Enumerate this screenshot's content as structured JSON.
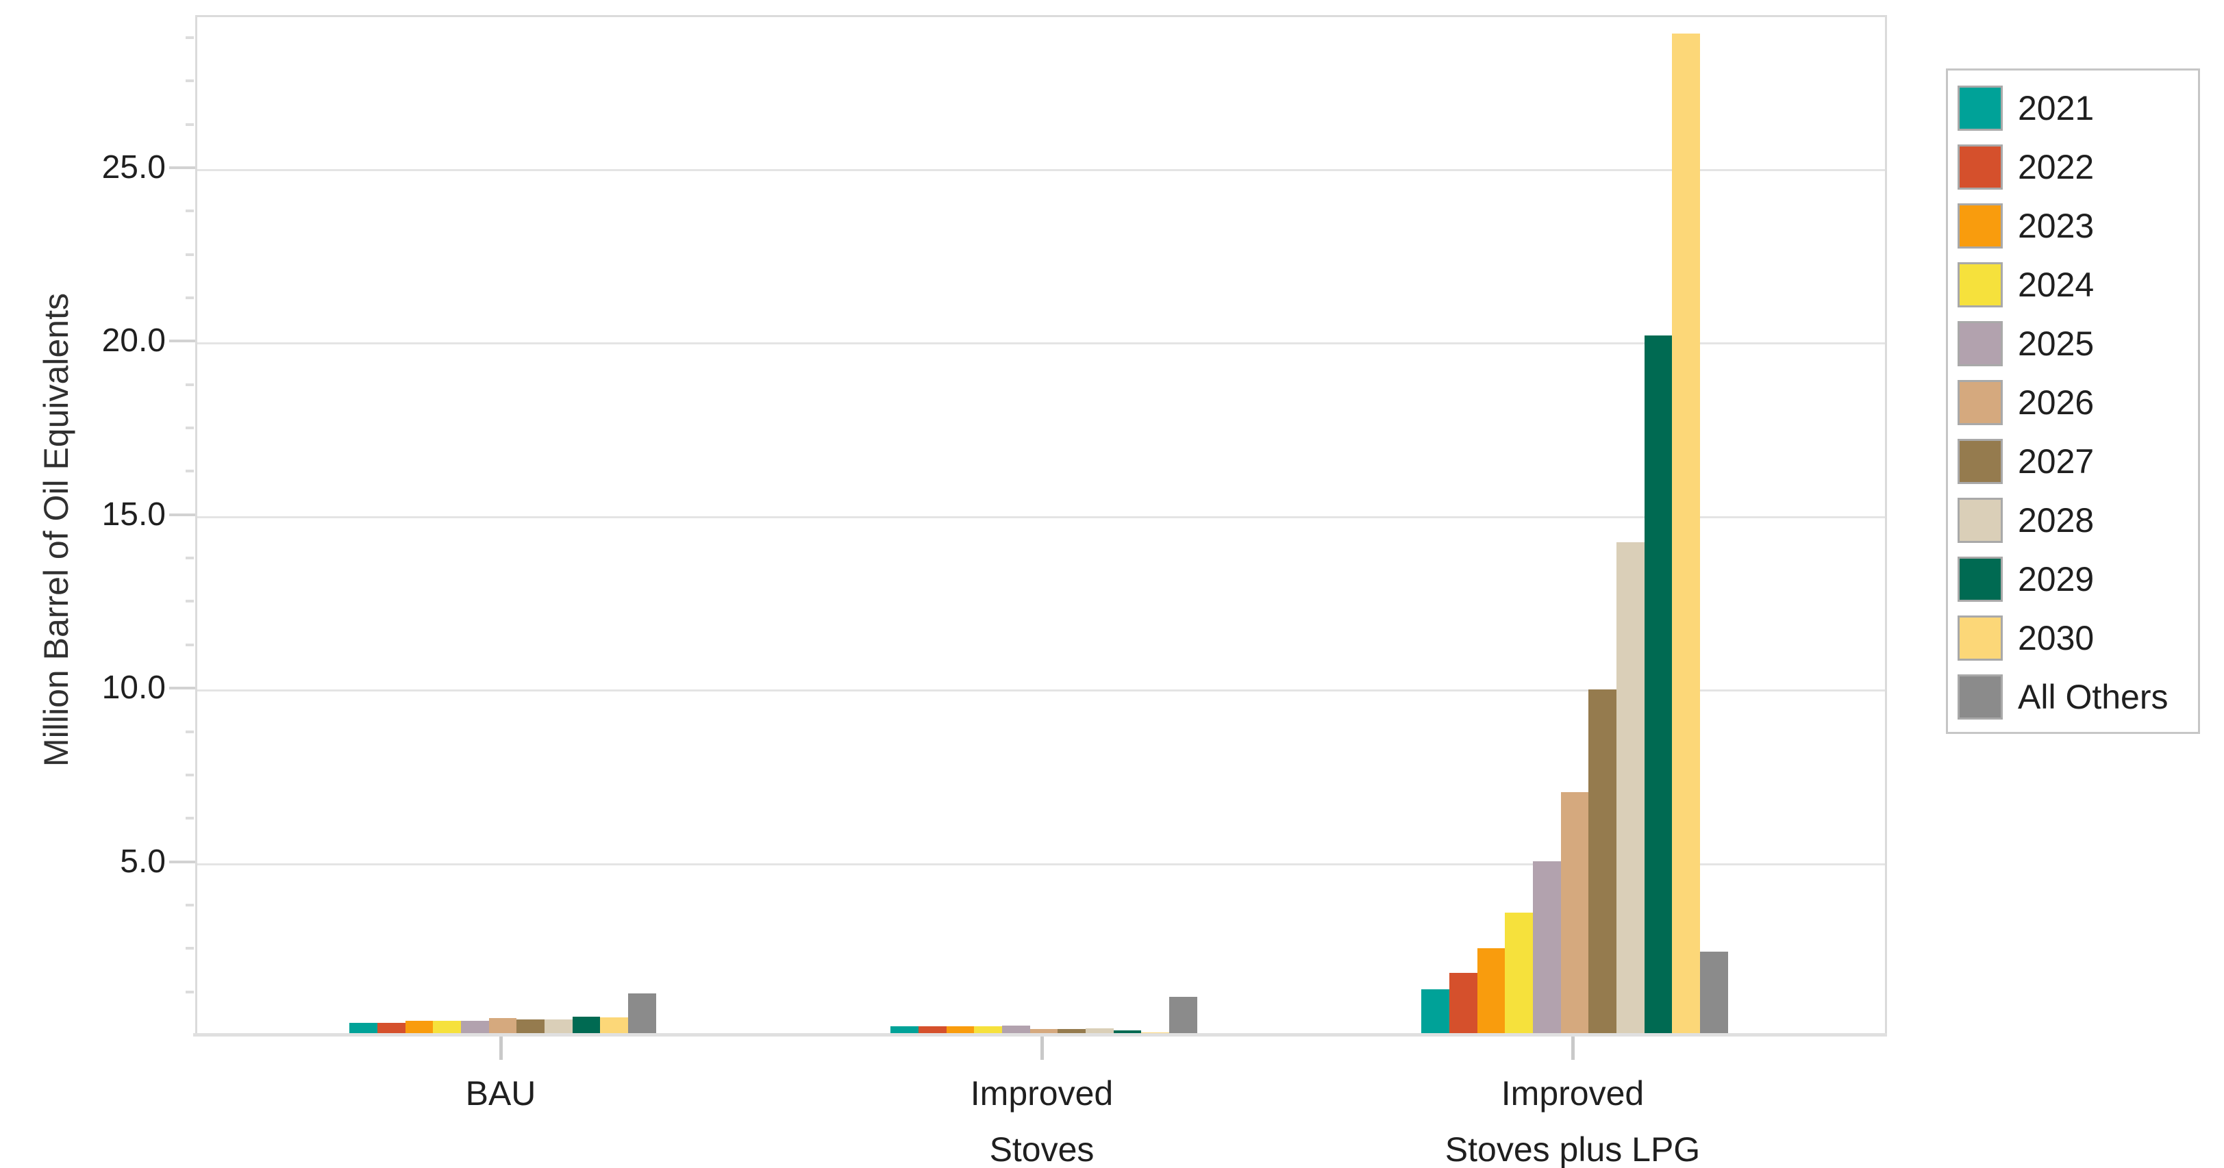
{
  "chart_data": {
    "type": "bar",
    "title": "",
    "xlabel": "",
    "ylabel": "Million Barrel of Oil Equivalents",
    "ylim": [
      0,
      29.4
    ],
    "grid": "horizontal-major-only",
    "legend_position": "right",
    "y_major_ticks": [
      {
        "value": 5,
        "label": "5.0"
      },
      {
        "value": 10,
        "label": "10.0"
      },
      {
        "value": 15,
        "label": "15.0"
      },
      {
        "value": 20,
        "label": "20.0"
      },
      {
        "value": 25,
        "label": "25.0"
      }
    ],
    "y_minor_tick_step": 1.25,
    "categories": [
      {
        "id": "bau",
        "label_lines": [
          "BAU"
        ]
      },
      {
        "id": "improved-stoves",
        "label_lines": [
          "Improved",
          "Stoves"
        ]
      },
      {
        "id": "improved-stoves-plus-lpg",
        "label_lines": [
          "Improved",
          "Stoves plus LPG"
        ]
      }
    ],
    "series": [
      {
        "name": "2021",
        "color": "#00A298",
        "values": [
          0.3,
          0.2,
          1.26
        ]
      },
      {
        "name": "2022",
        "color": "#D5502C",
        "values": [
          0.29,
          0.2,
          1.73
        ]
      },
      {
        "name": "2023",
        "color": "#F99C0D",
        "values": [
          0.36,
          0.19,
          2.45
        ]
      },
      {
        "name": "2024",
        "color": "#F6E13C",
        "values": [
          0.35,
          0.19,
          3.48
        ]
      },
      {
        "name": "2025",
        "color": "#B2A2AE",
        "values": [
          0.35,
          0.21,
          4.95
        ]
      },
      {
        "name": "2026",
        "color": "#D5A97E",
        "values": [
          0.43,
          0.11,
          6.95
        ]
      },
      {
        "name": "2027",
        "color": "#957B4E",
        "values": [
          0.4,
          0.12,
          9.9
        ]
      },
      {
        "name": "2028",
        "color": "#DACFB8",
        "values": [
          0.4,
          0.13,
          14.15
        ]
      },
      {
        "name": "2029",
        "color": "#006A52",
        "values": [
          0.48,
          0.08,
          20.1
        ]
      },
      {
        "name": "2030",
        "color": "#FCD778",
        "values": [
          0.46,
          0.02,
          28.8
        ]
      },
      {
        "name": "All Others",
        "color": "#8B8B8B",
        "values": [
          1.15,
          1.05,
          2.34
        ]
      }
    ]
  }
}
